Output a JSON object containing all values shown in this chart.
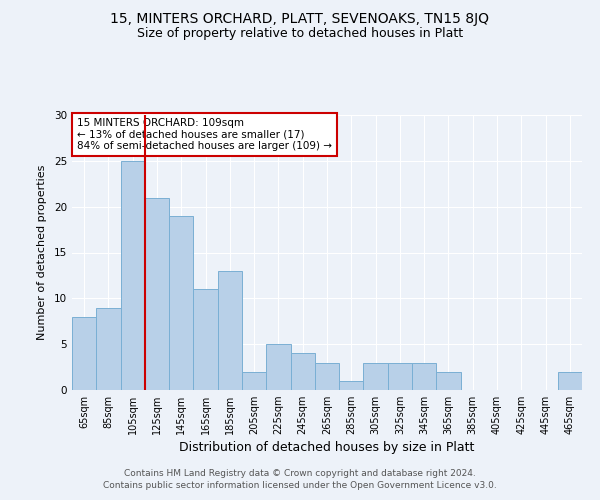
{
  "title1": "15, MINTERS ORCHARD, PLATT, SEVENOAKS, TN15 8JQ",
  "title2": "Size of property relative to detached houses in Platt",
  "xlabel": "Distribution of detached houses by size in Platt",
  "ylabel": "Number of detached properties",
  "categories": [
    "65sqm",
    "85sqm",
    "105sqm",
    "125sqm",
    "145sqm",
    "165sqm",
    "185sqm",
    "205sqm",
    "225sqm",
    "245sqm",
    "265sqm",
    "285sqm",
    "305sqm",
    "325sqm",
    "345sqm",
    "365sqm",
    "385sqm",
    "405sqm",
    "425sqm",
    "445sqm",
    "465sqm"
  ],
  "values": [
    8,
    9,
    25,
    21,
    19,
    11,
    13,
    2,
    5,
    4,
    3,
    1,
    3,
    3,
    3,
    2,
    0,
    0,
    0,
    0,
    2
  ],
  "bar_color": "#b8d0e8",
  "bar_edge_color": "#7aafd4",
  "vline_color": "#cc0000",
  "annotation_text": "15 MINTERS ORCHARD: 109sqm\n← 13% of detached houses are smaller (17)\n84% of semi-detached houses are larger (109) →",
  "annotation_box_color": "#ffffff",
  "annotation_border_color": "#cc0000",
  "ylim": [
    0,
    30
  ],
  "yticks": [
    0,
    5,
    10,
    15,
    20,
    25,
    30
  ],
  "footer": "Contains HM Land Registry data © Crown copyright and database right 2024.\nContains public sector information licensed under the Open Government Licence v3.0.",
  "bg_color": "#edf2f9",
  "title1_fontsize": 10,
  "title2_fontsize": 9,
  "xlabel_fontsize": 9,
  "ylabel_fontsize": 8,
  "tick_fontsize": 7,
  "footer_fontsize": 6.5,
  "annotation_fontsize": 7.5
}
